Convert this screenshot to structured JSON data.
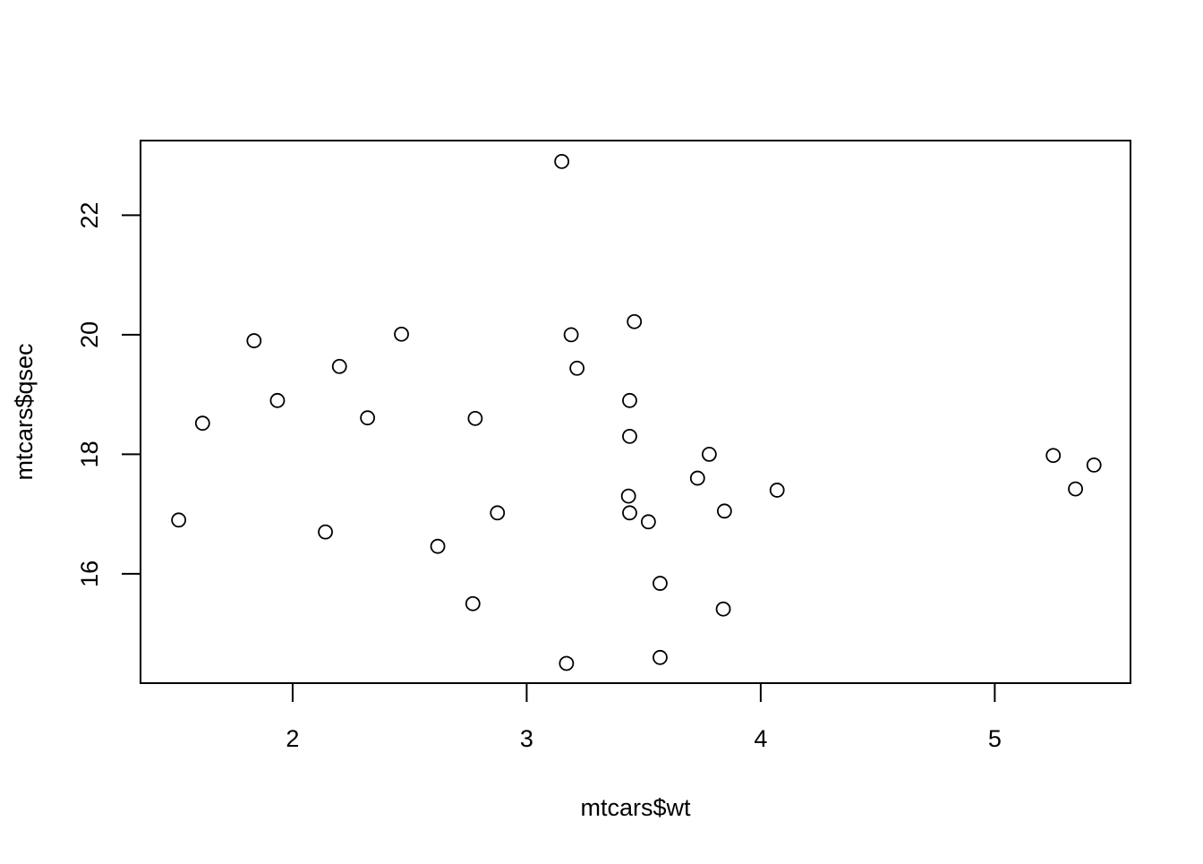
{
  "chart_data": {
    "type": "scatter",
    "title": "",
    "xlabel": "mtcars$wt",
    "ylabel": "mtcars$qsec",
    "xlim": [
      1.35,
      5.58
    ],
    "ylim": [
      14.17,
      23.25
    ],
    "x_ticks": [
      2,
      3,
      4,
      5
    ],
    "x_tick_labels": [
      "2",
      "3",
      "4",
      "5"
    ],
    "y_ticks": [
      16,
      18,
      20,
      22
    ],
    "y_tick_labels": [
      "16",
      "18",
      "20",
      "22"
    ],
    "grid": false,
    "legend": "none",
    "marker": "open-circle",
    "colors": {
      "points": "#000000",
      "axes": "#000000",
      "background": "#ffffff"
    },
    "points": [
      {
        "x": 2.62,
        "y": 16.46
      },
      {
        "x": 2.875,
        "y": 17.02
      },
      {
        "x": 2.32,
        "y": 18.61
      },
      {
        "x": 3.215,
        "y": 19.44
      },
      {
        "x": 3.44,
        "y": 17.02
      },
      {
        "x": 3.46,
        "y": 20.22
      },
      {
        "x": 3.57,
        "y": 15.84
      },
      {
        "x": 3.19,
        "y": 20.0
      },
      {
        "x": 3.15,
        "y": 22.9
      },
      {
        "x": 3.44,
        "y": 18.3
      },
      {
        "x": 3.44,
        "y": 18.9
      },
      {
        "x": 4.07,
        "y": 17.4
      },
      {
        "x": 3.73,
        "y": 17.6
      },
      {
        "x": 3.78,
        "y": 18.0
      },
      {
        "x": 5.25,
        "y": 17.98
      },
      {
        "x": 5.424,
        "y": 17.82
      },
      {
        "x": 5.345,
        "y": 17.42
      },
      {
        "x": 2.2,
        "y": 19.47
      },
      {
        "x": 1.615,
        "y": 18.52
      },
      {
        "x": 1.835,
        "y": 19.9
      },
      {
        "x": 2.465,
        "y": 20.01
      },
      {
        "x": 3.52,
        "y": 16.87
      },
      {
        "x": 3.435,
        "y": 17.3
      },
      {
        "x": 3.84,
        "y": 15.41
      },
      {
        "x": 3.845,
        "y": 17.05
      },
      {
        "x": 1.935,
        "y": 18.9
      },
      {
        "x": 2.14,
        "y": 16.7
      },
      {
        "x": 1.513,
        "y": 16.9
      },
      {
        "x": 3.17,
        "y": 14.5
      },
      {
        "x": 2.77,
        "y": 15.5
      },
      {
        "x": 3.57,
        "y": 14.6
      },
      {
        "x": 2.78,
        "y": 18.6
      }
    ]
  }
}
